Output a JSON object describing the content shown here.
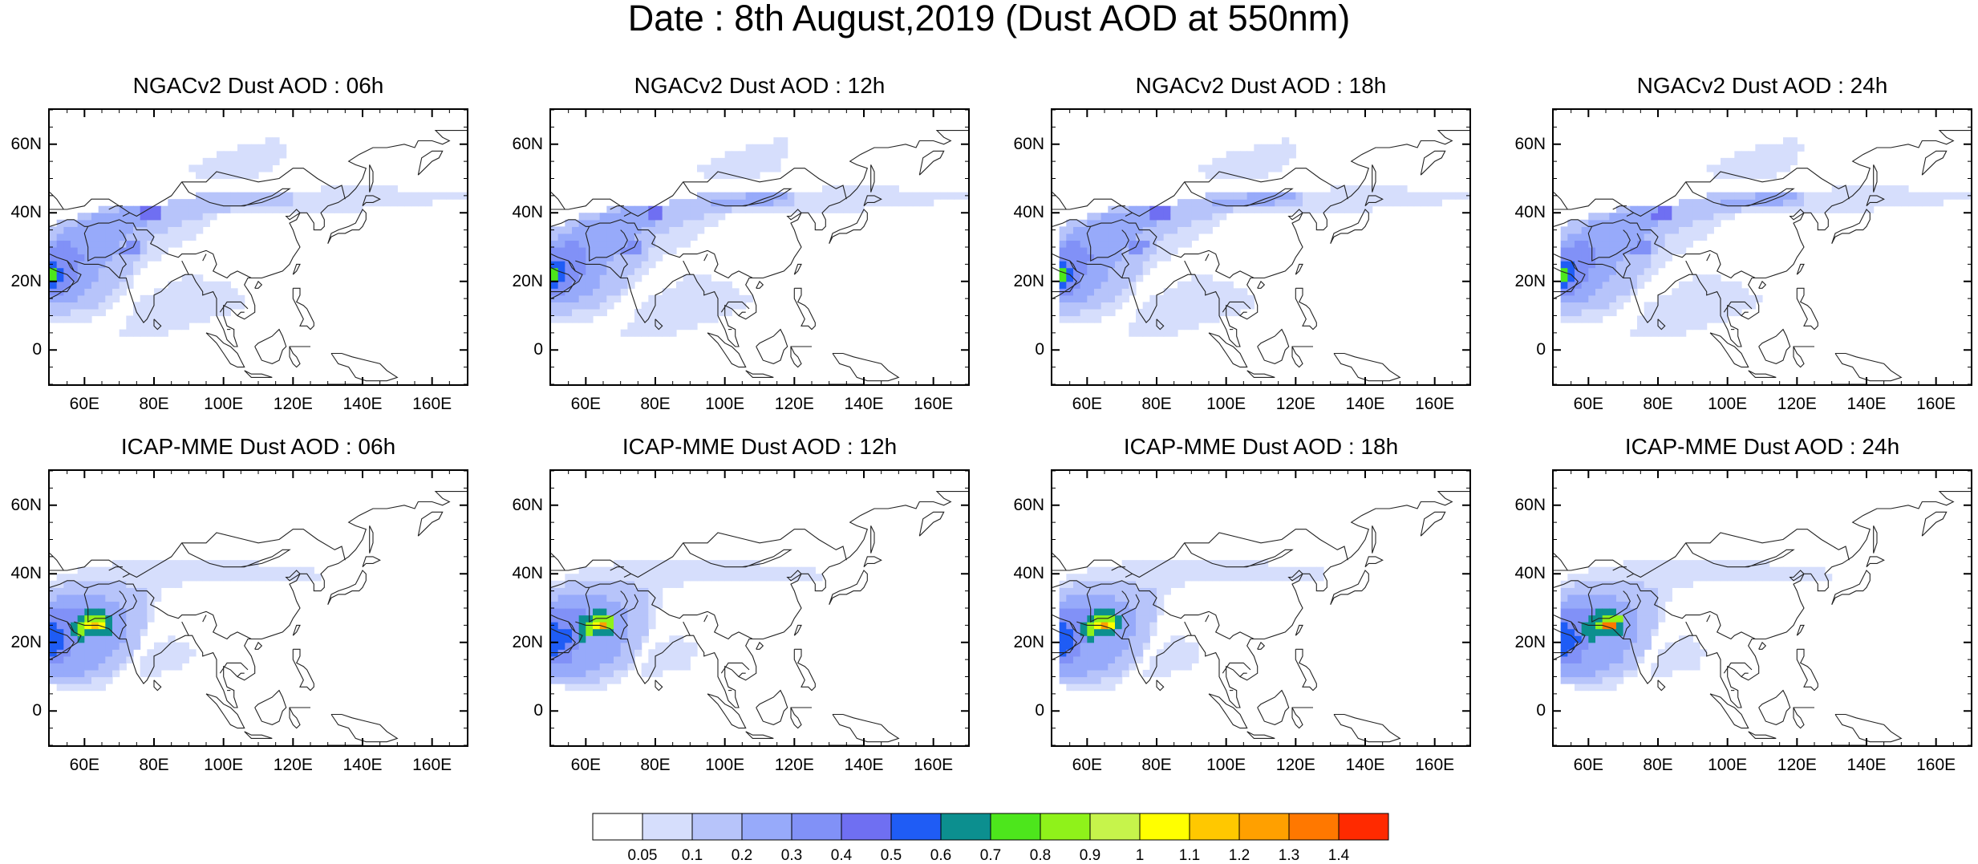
{
  "title": "Date : 8th August,2019 (Dust AOD at 550nm)",
  "panels": [
    {
      "title": "NGACv2 Dust AOD : 06h",
      "model": "ngac",
      "hour": 6
    },
    {
      "title": "NGACv2 Dust AOD : 12h",
      "model": "ngac",
      "hour": 12
    },
    {
      "title": "NGACv2 Dust AOD : 18h",
      "model": "ngac",
      "hour": 18
    },
    {
      "title": "NGACv2 Dust AOD : 24h",
      "model": "ngac",
      "hour": 24
    },
    {
      "title": "ICAP-MME Dust AOD : 06h",
      "model": "icap",
      "hour": 6
    },
    {
      "title": "ICAP-MME Dust AOD : 12h",
      "model": "icap",
      "hour": 12
    },
    {
      "title": "ICAP-MME Dust AOD : 18h",
      "model": "icap",
      "hour": 18
    },
    {
      "title": "ICAP-MME Dust AOD : 24h",
      "model": "icap",
      "hour": 24
    }
  ],
  "axes": {
    "lon_range": [
      50,
      170
    ],
    "lat_range": [
      -10,
      70
    ],
    "lon_ticks": [
      60,
      80,
      100,
      120,
      140,
      160
    ],
    "lon_tick_labels": [
      "60E",
      "80E",
      "100E",
      "120E",
      "140E",
      "160E"
    ],
    "lat_ticks": [
      0,
      20,
      40,
      60
    ],
    "lat_tick_labels": [
      "0",
      "20N",
      "40N",
      "60N"
    ]
  },
  "colorbar": {
    "levels": [
      "0.05",
      "0.1",
      "0.2",
      "0.3",
      "0.4",
      "0.5",
      "0.6",
      "0.7",
      "0.8",
      "0.9",
      "1",
      "1.1",
      "1.2",
      "1.3",
      "1.4"
    ],
    "colors": [
      "#ffffff",
      "#d6defc",
      "#b7c4fa",
      "#97aafa",
      "#8191f7",
      "#6f6ff2",
      "#1f5cf5",
      "#0c8f8f",
      "#4de61c",
      "#8ff21a",
      "#c6f44b",
      "#ffff00",
      "#ffc800",
      "#ffa000",
      "#ff7800",
      "#ff2a00"
    ]
  }
}
